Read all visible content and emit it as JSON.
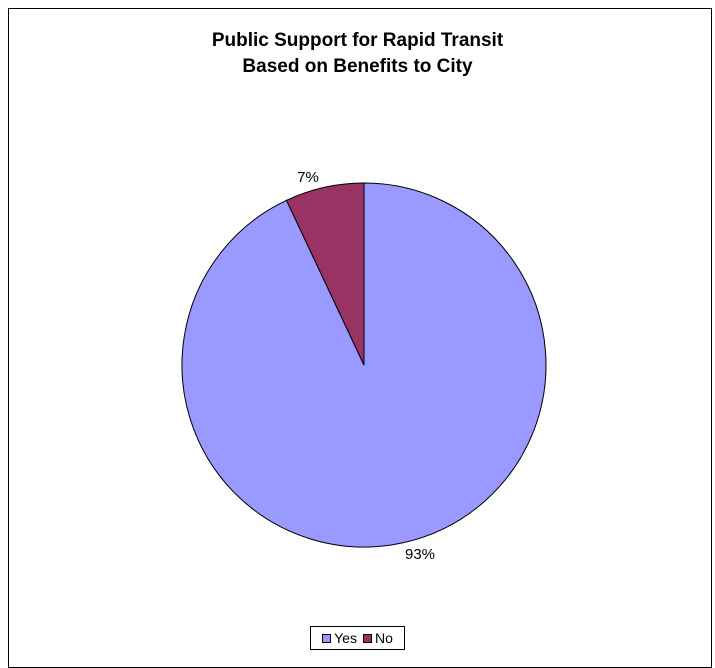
{
  "chart_data": {
    "type": "pie",
    "title": [
      "Public Support for Rapid Transit",
      "Based on Benefits to City"
    ],
    "slices": [
      {
        "label": "Yes",
        "value": 93,
        "display": "93%",
        "color": "#9999FF"
      },
      {
        "label": "No",
        "value": 7,
        "display": "7%",
        "color": "#993366"
      }
    ],
    "legend": {
      "placement": "bottom",
      "entries": [
        "Yes",
        "No"
      ]
    }
  }
}
